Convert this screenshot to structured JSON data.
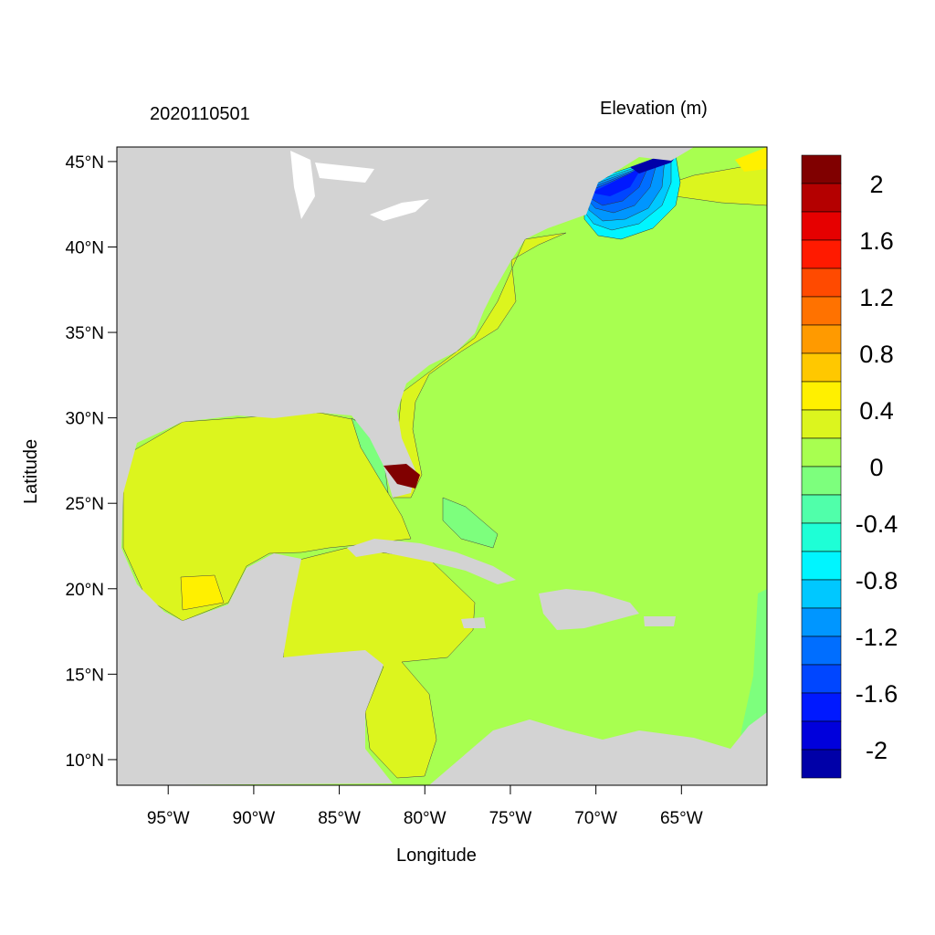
{
  "figure": {
    "title_left": "2020110501",
    "title_right": "Elevation (m)",
    "xlabel": "Longitude",
    "ylabel": "Latitude"
  },
  "map": {
    "lon_range": [
      -98,
      -60
    ],
    "lat_range": [
      8.5,
      45.85
    ],
    "lon_ticks": [
      -95,
      -90,
      -85,
      -80,
      -75,
      -70,
      -65
    ],
    "lon_tick_labels": [
      "95°W",
      "90°W",
      "85°W",
      "80°W",
      "75°W",
      "70°W",
      "65°W"
    ],
    "lat_ticks": [
      45,
      40,
      35,
      30,
      25,
      20,
      15,
      10
    ],
    "lat_tick_labels": [
      "45°N",
      "40°N",
      "35°N",
      "30°N",
      "25°N",
      "20°N",
      "15°N",
      "10°N"
    ],
    "land_color": "#d3d3d3",
    "variable": "Elevation (m)"
  },
  "colorbar": {
    "range": [
      -2.2,
      2.2
    ],
    "step": 0.2,
    "labels": [
      "2",
      "1.6",
      "1.2",
      "0.8",
      "0.4",
      "0",
      "-0.4",
      "-0.8",
      "-1.2",
      "-1.6",
      "-2"
    ],
    "label_values": [
      2,
      1.6,
      1.2,
      0.8,
      0.4,
      0,
      -0.4,
      -0.8,
      -1.2,
      -1.6,
      -2
    ],
    "colors_top_to_bottom": [
      "#800000",
      "#b40000",
      "#e60000",
      "#ff1a00",
      "#ff4a00",
      "#ff7200",
      "#ff9a00",
      "#ffc800",
      "#fff000",
      "#dcf51e",
      "#a8ff50",
      "#7dff7d",
      "#50ffaa",
      "#1effd6",
      "#00f5ff",
      "#00c8ff",
      "#0096ff",
      "#006eff",
      "#0046ff",
      "#0019ff",
      "#0000dc",
      "#0000a8"
    ]
  }
}
